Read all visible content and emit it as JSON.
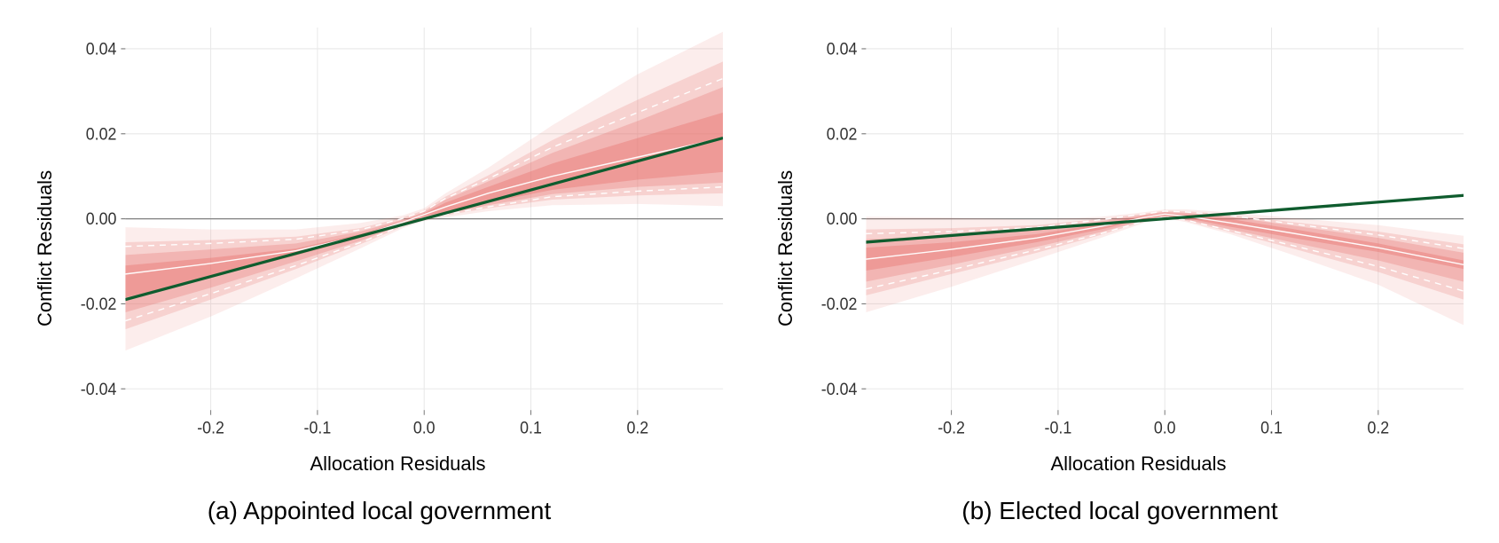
{
  "background_color": "#ffffff",
  "grid_color": "#e8e8e8",
  "zero_line_color": "#808080",
  "axis_text_color": "#333333",
  "tick_fontsize": 18,
  "axis_label_fontsize": 22,
  "caption_fontsize": 28,
  "xlabel": "Allocation Residuals",
  "ylabel": "Conflict Residuals",
  "xlim": [
    -0.28,
    0.28
  ],
  "ylim": [
    -0.045,
    0.045
  ],
  "x_ticks": [
    -0.2,
    -0.1,
    0.0,
    0.1,
    0.2
  ],
  "x_tick_labels": [
    "-0.2",
    "-0.1",
    "0.0",
    "0.1",
    "0.2"
  ],
  "y_ticks": [
    -0.04,
    -0.02,
    0.0,
    0.02,
    0.04
  ],
  "y_tick_labels": [
    "-0.04",
    "-0.02",
    "0.00",
    "0.02",
    "0.04"
  ],
  "regression_line_color": "#0f5c2e",
  "regression_line_width": 3,
  "ribbon_color": "#e8736f",
  "ribbon_inner_line_color": "#ffffff",
  "ribbon_inner_line_width": 1.3,
  "panels": {
    "a": {
      "caption": "(a)   Appointed local government",
      "regression_line": {
        "x1": -0.28,
        "y1": -0.019,
        "x2": 0.28,
        "y2": 0.019
      },
      "ribbon_layers": [
        {
          "opacity": 0.13,
          "x": [
            -0.28,
            -0.2,
            -0.12,
            -0.06,
            -0.02,
            0.0,
            0.02,
            0.06,
            0.12,
            0.2,
            0.28
          ],
          "hi": [
            -0.002,
            -0.0025,
            -0.0025,
            -0.001,
            0.0008,
            0.0025,
            0.006,
            0.012,
            0.022,
            0.034,
            0.044
          ],
          "lo": [
            -0.031,
            -0.023,
            -0.014,
            -0.007,
            -0.0022,
            -0.0005,
            0.0003,
            0.0018,
            0.0032,
            0.0035,
            0.003
          ]
        },
        {
          "opacity": 0.22,
          "x": [
            -0.28,
            -0.2,
            -0.12,
            -0.06,
            -0.02,
            0.0,
            0.02,
            0.06,
            0.12,
            0.2,
            0.28
          ],
          "hi": [
            -0.0055,
            -0.005,
            -0.0042,
            -0.0022,
            0.0003,
            0.002,
            0.0052,
            0.0102,
            0.0185,
            0.028,
            0.037
          ],
          "lo": [
            -0.026,
            -0.019,
            -0.0118,
            -0.006,
            -0.0018,
            0.0,
            0.0008,
            0.0025,
            0.0045,
            0.0055,
            0.006
          ]
        },
        {
          "opacity": 0.3,
          "x": [
            -0.28,
            -0.2,
            -0.12,
            -0.06,
            -0.02,
            0.0,
            0.02,
            0.06,
            0.12,
            0.2,
            0.28
          ],
          "hi": [
            -0.0085,
            -0.0072,
            -0.0058,
            -0.003,
            -0.0002,
            0.0016,
            0.0045,
            0.0088,
            0.0155,
            0.023,
            0.031
          ],
          "lo": [
            -0.022,
            -0.0162,
            -0.01,
            -0.0052,
            -0.0014,
            0.0003,
            0.0012,
            0.0032,
            0.0058,
            0.0075,
            0.0085
          ]
        },
        {
          "opacity": 0.4,
          "x": [
            -0.28,
            -0.2,
            -0.12,
            -0.06,
            -0.02,
            0.0,
            0.02,
            0.06,
            0.12,
            0.2,
            0.28
          ],
          "hi": [
            -0.011,
            -0.0092,
            -0.007,
            -0.0036,
            -0.0006,
            0.0013,
            0.0038,
            0.0075,
            0.013,
            0.019,
            0.025
          ],
          "lo": [
            -0.0185,
            -0.0138,
            -0.0086,
            -0.0045,
            -0.001,
            0.0006,
            0.0016,
            0.0038,
            0.0068,
            0.0092,
            0.011
          ]
        }
      ],
      "median_line": {
        "x": [
          -0.28,
          -0.2,
          -0.12,
          -0.06,
          -0.02,
          0.0,
          0.02,
          0.06,
          0.12,
          0.2,
          0.28
        ],
        "y": [
          -0.013,
          -0.0105,
          -0.0075,
          -0.004,
          -0.0008,
          0.001,
          0.0028,
          0.006,
          0.01,
          0.0145,
          0.019
        ]
      },
      "dashed_lines": [
        {
          "x": [
            -0.28,
            -0.2,
            -0.12,
            -0.06,
            -0.02,
            0.0,
            0.02,
            0.06,
            0.12,
            0.2,
            0.28
          ],
          "y": [
            -0.0065,
            -0.0058,
            -0.0048,
            -0.0026,
            0.0001,
            0.0018,
            0.0048,
            0.0094,
            0.0168,
            0.025,
            0.033
          ]
        },
        {
          "x": [
            -0.28,
            -0.2,
            -0.12,
            -0.06,
            -0.02,
            0.0,
            0.02,
            0.06,
            0.12,
            0.2,
            0.28
          ],
          "y": [
            -0.024,
            -0.0176,
            -0.011,
            -0.0056,
            -0.0016,
            0.0002,
            0.001,
            0.0028,
            0.0052,
            0.0065,
            0.0075
          ]
        }
      ]
    },
    "b": {
      "caption": "(b) Elected local government",
      "regression_line": {
        "x1": -0.28,
        "y1": -0.0055,
        "x2": 0.28,
        "y2": 0.0055
      },
      "ribbon_layers": [
        {
          "opacity": 0.13,
          "x": [
            -0.28,
            -0.2,
            -0.12,
            -0.06,
            -0.02,
            0.0,
            0.02,
            0.06,
            0.12,
            0.2,
            0.28
          ],
          "hi": [
            0.0005,
            0.0003,
            -0.0002,
            0.0005,
            0.0015,
            0.0022,
            0.0022,
            0.0015,
            0.0002,
            -0.0015,
            -0.004
          ],
          "lo": [
            -0.022,
            -0.016,
            -0.0095,
            -0.0045,
            -0.001,
            0.0002,
            -0.0008,
            -0.0035,
            -0.0085,
            -0.0155,
            -0.025
          ]
        },
        {
          "opacity": 0.22,
          "x": [
            -0.28,
            -0.2,
            -0.12,
            -0.06,
            -0.02,
            0.0,
            0.02,
            0.06,
            0.12,
            0.2,
            0.28
          ],
          "hi": [
            -0.0025,
            -0.0022,
            -0.0015,
            0.0,
            0.0012,
            0.0019,
            0.0018,
            0.001,
            -0.0008,
            -0.003,
            -0.006
          ],
          "lo": [
            -0.018,
            -0.013,
            -0.008,
            -0.0038,
            -0.0007,
            0.0004,
            -0.0005,
            -0.003,
            -0.007,
            -0.0125,
            -0.019
          ]
        },
        {
          "opacity": 0.3,
          "x": [
            -0.28,
            -0.2,
            -0.12,
            -0.06,
            -0.02,
            0.0,
            0.02,
            0.06,
            0.12,
            0.2,
            0.28
          ],
          "hi": [
            -0.0048,
            -0.004,
            -0.0026,
            -0.0006,
            0.0009,
            0.0016,
            0.0014,
            0.0005,
            -0.0016,
            -0.0045,
            -0.008
          ],
          "lo": [
            -0.0148,
            -0.0108,
            -0.0066,
            -0.0031,
            -0.0004,
            0.0006,
            -0.0002,
            -0.0024,
            -0.0056,
            -0.0098,
            -0.0148
          ]
        },
        {
          "opacity": 0.4,
          "x": [
            -0.28,
            -0.2,
            -0.12,
            -0.06,
            -0.02,
            0.0,
            0.02,
            0.06,
            0.12,
            0.2,
            0.28
          ],
          "hi": [
            -0.0068,
            -0.0055,
            -0.0036,
            -0.0012,
            0.0006,
            0.0013,
            0.001,
            0.0,
            -0.0024,
            -0.0058,
            -0.0098
          ],
          "lo": [
            -0.0122,
            -0.009,
            -0.0055,
            -0.0025,
            -0.0001,
            0.0008,
            0.0002,
            -0.0018,
            -0.0045,
            -0.0078,
            -0.0118
          ]
        }
      ],
      "median_line": {
        "x": [
          -0.28,
          -0.2,
          -0.12,
          -0.06,
          -0.02,
          0.0,
          0.02,
          0.06,
          0.12,
          0.2,
          0.28
        ],
        "y": [
          -0.0095,
          -0.0072,
          -0.0045,
          -0.0018,
          0.0003,
          0.0011,
          0.0006,
          -0.0009,
          -0.0034,
          -0.0068,
          -0.0108
        ]
      },
      "dashed_lines": [
        {
          "x": [
            -0.28,
            -0.2,
            -0.12,
            -0.06,
            -0.02,
            0.0,
            0.02,
            0.06,
            0.12,
            0.2,
            0.28
          ],
          "y": [
            -0.0035,
            -0.003,
            -0.002,
            -0.0002,
            0.0011,
            0.0018,
            0.0016,
            0.0008,
            -0.0012,
            -0.0038,
            -0.007
          ]
        },
        {
          "x": [
            -0.28,
            -0.2,
            -0.12,
            -0.06,
            -0.02,
            0.0,
            0.02,
            0.06,
            0.12,
            0.2,
            0.28
          ],
          "y": [
            -0.0165,
            -0.012,
            -0.0073,
            -0.0035,
            -0.0006,
            0.0005,
            -0.0003,
            -0.0027,
            -0.0063,
            -0.0112,
            -0.017
          ]
        }
      ]
    }
  }
}
